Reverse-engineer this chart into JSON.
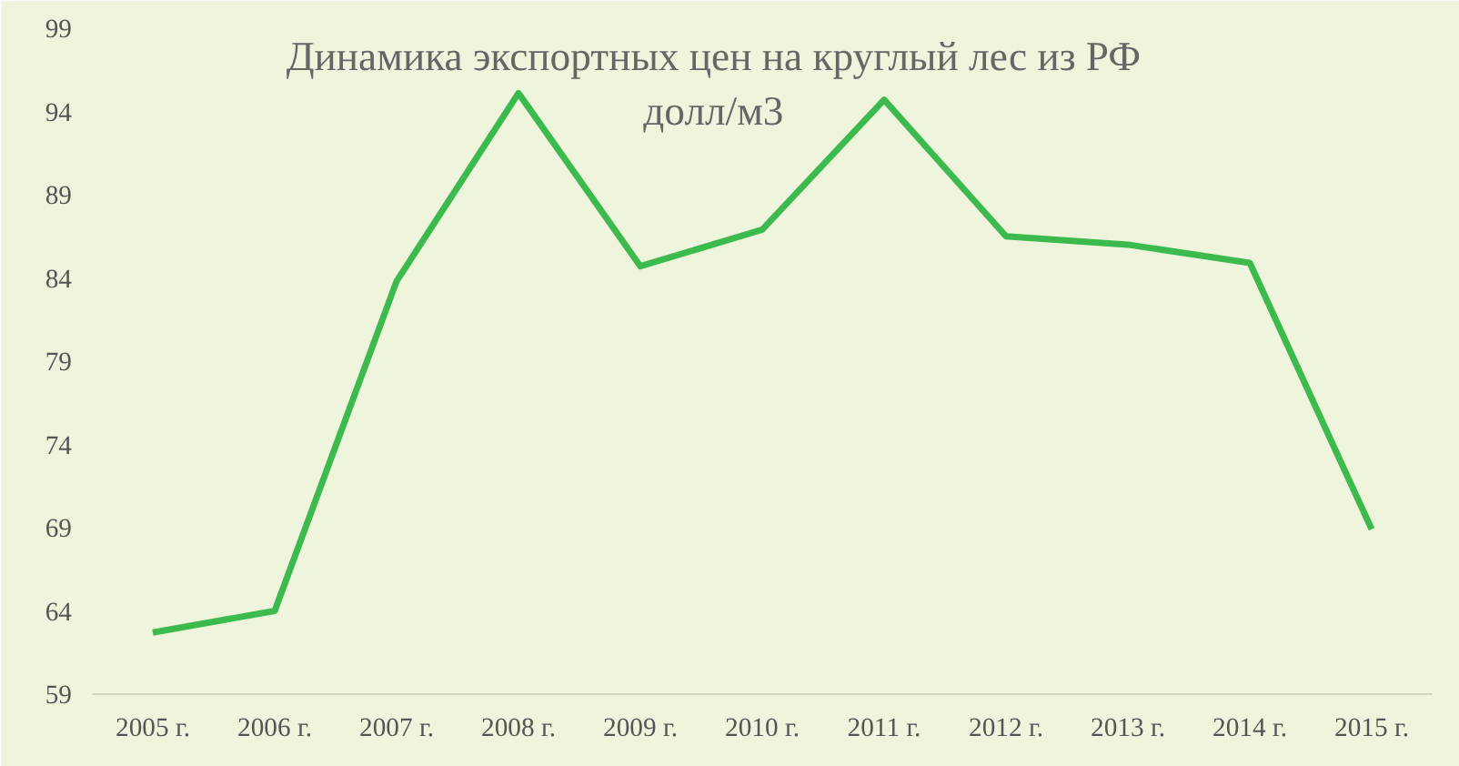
{
  "chart_data": {
    "type": "line",
    "title": "Динамика экспортных цен на круглый лес из РФ",
    "subtitle": "долл/м3",
    "categories": [
      "2005 г.",
      "2006 г.",
      "2007 г.",
      "2008 г.",
      "2009 г.",
      "2010 г.",
      "2011 г.",
      "2012 г.",
      "2013 г.",
      "2014 г.",
      "2015 г."
    ],
    "series": [
      {
        "color": "#3dba4e",
        "values": [
          62.7,
          64,
          83.8,
          95.1,
          84.7,
          86.9,
          94.7,
          86.5,
          86.0,
          84.9,
          68.9
        ]
      }
    ],
    "ylim": [
      59,
      99
    ],
    "yticks": [
      59,
      64,
      69,
      74,
      79,
      84,
      89,
      94,
      99
    ],
    "grid": false,
    "marker": "none",
    "line_style": "solid"
  }
}
